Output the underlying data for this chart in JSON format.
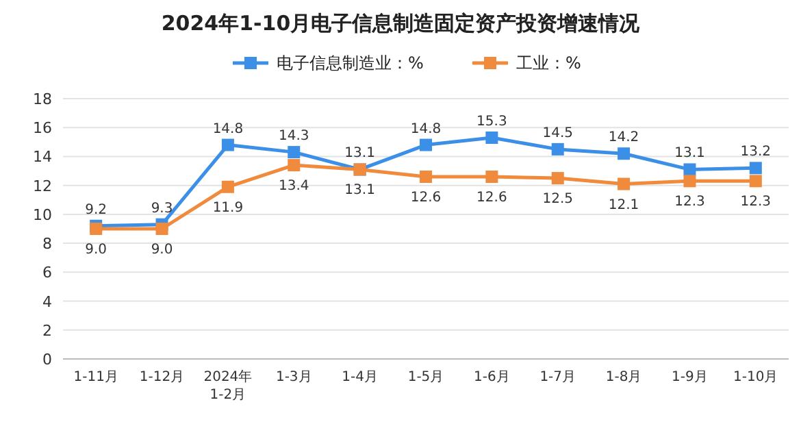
{
  "chart_data": {
    "type": "line",
    "title": "2024年1-10月电子信息制造固定资产投资增速情况",
    "categories": [
      "1-11月",
      "1-12月",
      "2024年 1-2月",
      "1-3月",
      "1-4月",
      "1-5月",
      "1-6月",
      "1-7月",
      "1-8月",
      "1-9月",
      "1-10月"
    ],
    "series": [
      {
        "name": "电子信息制造业：%",
        "color": "#3c8fe6",
        "values": [
          9.2,
          9.3,
          14.8,
          14.3,
          13.1,
          14.8,
          15.3,
          14.5,
          14.2,
          13.1,
          13.2
        ],
        "value_labels": [
          "9.2",
          "9.3",
          "14.8",
          "14.3",
          "13.1",
          "14.8",
          "15.3",
          "14.5",
          "14.2",
          "13.1",
          "13.2"
        ]
      },
      {
        "name": "工业：%",
        "color": "#f08a3c",
        "values": [
          9.0,
          9.0,
          11.9,
          13.4,
          13.1,
          12.6,
          12.6,
          12.5,
          12.1,
          12.3,
          12.3
        ],
        "value_labels": [
          "9.0",
          "9.0",
          "11.9",
          "13.4",
          "13.1",
          "12.6",
          "12.6",
          "12.5",
          "12.1",
          "12.3",
          "12.3"
        ]
      }
    ],
    "ylim": [
      0,
      18
    ],
    "yticks": [
      0,
      2,
      4,
      6,
      8,
      10,
      12,
      14,
      16,
      18
    ],
    "grid": "y",
    "legend": "top",
    "marker": "square",
    "line_style": "solid"
  }
}
